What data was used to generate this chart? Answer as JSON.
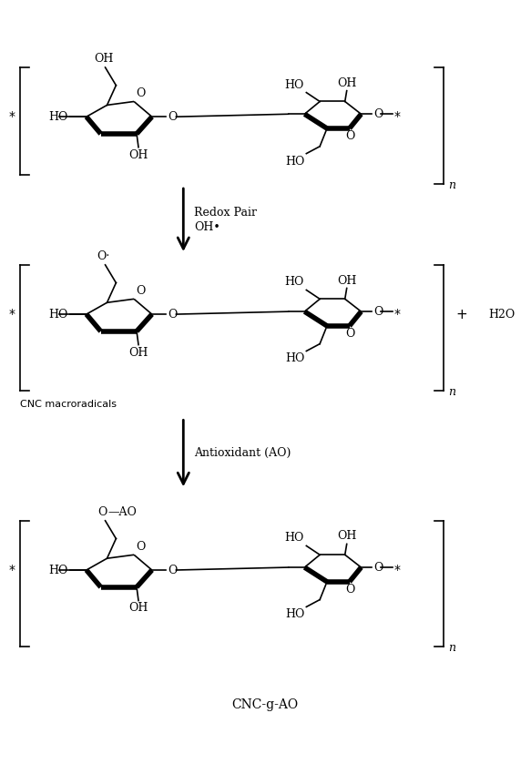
{
  "bg_color": "#ffffff",
  "line_color": "#000000",
  "figure_width": 5.83,
  "figure_height": 8.39,
  "dpi": 100,
  "arrow1_label_line1": "Redox Pair",
  "arrow1_label_line2": "OH•",
  "arrow2_label": "Antioxidant (AO)",
  "label_cnc": "CNC macroradicals",
  "label_product": "CNC-g-AO",
  "h2o_label": "H2O",
  "plus_label": "+",
  "font_size_main": 9,
  "font_size_label": 9
}
